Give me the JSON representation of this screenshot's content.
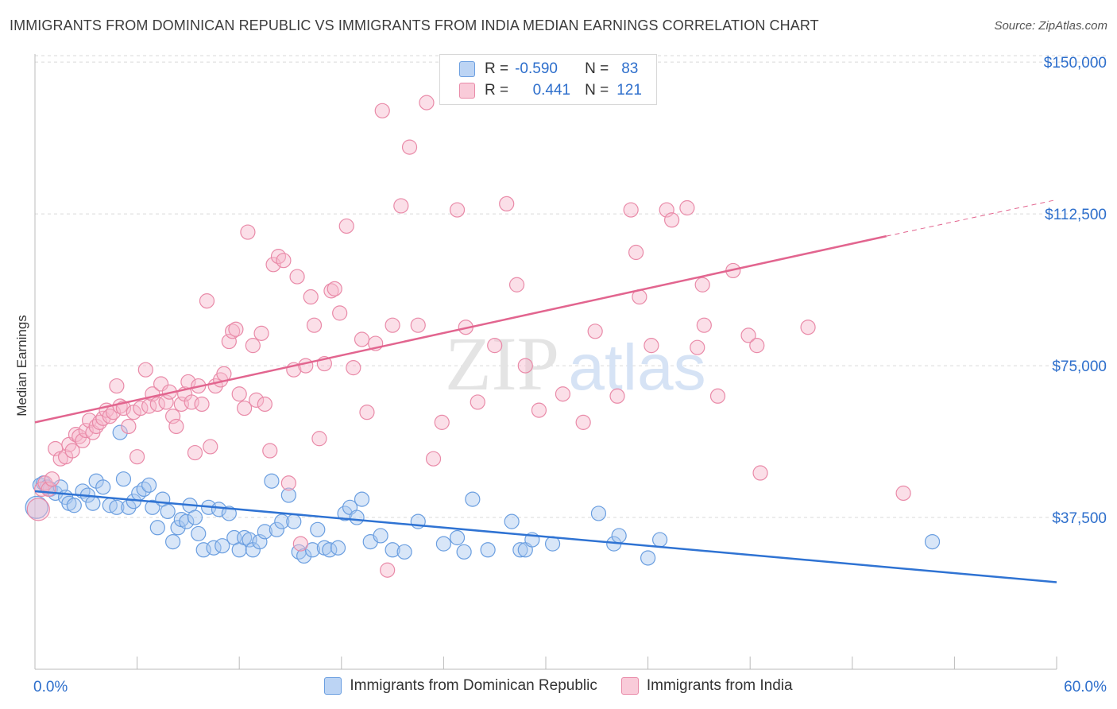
{
  "title": "IMMIGRANTS FROM DOMINICAN REPUBLIC VS IMMIGRANTS FROM INDIA MEDIAN EARNINGS CORRELATION CHART",
  "source": "Source: ZipAtlas.com",
  "watermark": {
    "zip": "ZIP",
    "atlas": "atlas"
  },
  "legend_inset": {
    "rows": [
      {
        "r_label": "R =",
        "r_value": "-0.590",
        "n_label": "N =",
        "n_value": "83"
      },
      {
        "r_label": "R =",
        "r_value": "0.441",
        "n_label": "N =",
        "n_value": "121"
      }
    ]
  },
  "colors": {
    "blue_fill": "#a9c8f0",
    "blue_stroke": "#6a9ee0",
    "blue_line": "#2f73d3",
    "pink_fill": "#f6b8cb",
    "pink_stroke": "#e98aa8",
    "pink_line": "#e2658f",
    "grid": "#d9d9d9",
    "axis_text": "#2e6fcc"
  },
  "chart_data": {
    "type": "scatter",
    "title": "IMMIGRANTS FROM DOMINICAN REPUBLIC VS IMMIGRANTS FROM INDIA MEDIAN EARNINGS CORRELATION CHART",
    "xlabel": "",
    "ylabel": "Median Earnings",
    "xlim": [
      0,
      60
    ],
    "ylim": [
      0,
      152000
    ],
    "x_tick_labels": [
      "0.0%",
      "60.0%"
    ],
    "y_ticks": [
      37500,
      75000,
      112500,
      150000
    ],
    "y_tick_labels": [
      "$37,500",
      "$75,000",
      "$112,500",
      "$150,000"
    ],
    "grid": true,
    "legend_position": "bottom",
    "series": [
      {
        "name": "Immigrants from Dominican Republic",
        "color": "#6a9ee0",
        "trend": {
          "x": [
            0,
            60
          ],
          "y": [
            44000,
            21500
          ]
        },
        "points": [
          [
            0.1,
            40000
          ],
          [
            0.3,
            45500
          ],
          [
            0.5,
            46000
          ],
          [
            0.7,
            45000
          ],
          [
            0.9,
            44500
          ],
          [
            1.2,
            43500
          ],
          [
            1.5,
            45000
          ],
          [
            1.8,
            42500
          ],
          [
            2.0,
            41000
          ],
          [
            2.3,
            40500
          ],
          [
            2.8,
            44000
          ],
          [
            3.1,
            43000
          ],
          [
            3.4,
            41000
          ],
          [
            3.6,
            46500
          ],
          [
            4.0,
            45000
          ],
          [
            4.4,
            40500
          ],
          [
            4.8,
            40000
          ],
          [
            5.0,
            58500
          ],
          [
            5.2,
            47000
          ],
          [
            5.5,
            40000
          ],
          [
            5.8,
            41500
          ],
          [
            6.1,
            43500
          ],
          [
            6.4,
            44500
          ],
          [
            6.7,
            45500
          ],
          [
            6.9,
            40000
          ],
          [
            7.2,
            35000
          ],
          [
            7.5,
            42000
          ],
          [
            7.8,
            39000
          ],
          [
            8.1,
            31500
          ],
          [
            8.4,
            35000
          ],
          [
            8.6,
            37000
          ],
          [
            8.9,
            36500
          ],
          [
            9.1,
            40500
          ],
          [
            9.4,
            37500
          ],
          [
            9.6,
            33500
          ],
          [
            9.9,
            29500
          ],
          [
            10.2,
            40000
          ],
          [
            10.5,
            30000
          ],
          [
            10.8,
            39500
          ],
          [
            11.0,
            30500
          ],
          [
            11.4,
            38500
          ],
          [
            11.7,
            32500
          ],
          [
            12.0,
            29500
          ],
          [
            12.3,
            32500
          ],
          [
            12.6,
            32000
          ],
          [
            12.8,
            29500
          ],
          [
            13.2,
            31500
          ],
          [
            13.5,
            34000
          ],
          [
            13.9,
            46500
          ],
          [
            14.2,
            34500
          ],
          [
            14.5,
            36500
          ],
          [
            14.9,
            43000
          ],
          [
            15.2,
            36500
          ],
          [
            15.5,
            29000
          ],
          [
            15.8,
            28000
          ],
          [
            16.3,
            29500
          ],
          [
            16.6,
            34500
          ],
          [
            17.0,
            30000
          ],
          [
            17.3,
            29500
          ],
          [
            17.8,
            30000
          ],
          [
            18.2,
            38500
          ],
          [
            18.5,
            40000
          ],
          [
            18.9,
            37500
          ],
          [
            19.2,
            42000
          ],
          [
            19.7,
            31500
          ],
          [
            20.3,
            33000
          ],
          [
            21.0,
            29500
          ],
          [
            21.7,
            29000
          ],
          [
            22.5,
            36500
          ],
          [
            24.0,
            31000
          ],
          [
            24.8,
            32500
          ],
          [
            25.2,
            29000
          ],
          [
            25.7,
            42000
          ],
          [
            26.6,
            29500
          ],
          [
            28.0,
            36500
          ],
          [
            28.5,
            29500
          ],
          [
            28.8,
            29500
          ],
          [
            29.2,
            32000
          ],
          [
            30.4,
            31000
          ],
          [
            33.1,
            38500
          ],
          [
            34.0,
            31000
          ],
          [
            34.3,
            33000
          ],
          [
            36.0,
            27500
          ],
          [
            36.7,
            32000
          ],
          [
            52.7,
            31500
          ]
        ]
      },
      {
        "name": "Immigrants from India",
        "color": "#e98aa8",
        "trend": {
          "x": [
            0,
            50
          ],
          "y": [
            61000,
            107000
          ],
          "dashed_to": {
            "x": 60,
            "y": 116000
          }
        },
        "points": [
          [
            0.2,
            39500
          ],
          [
            0.4,
            44500
          ],
          [
            0.6,
            46000
          ],
          [
            0.8,
            44500
          ],
          [
            1.0,
            47000
          ],
          [
            1.2,
            54500
          ],
          [
            1.5,
            52000
          ],
          [
            1.8,
            52500
          ],
          [
            2.0,
            55500
          ],
          [
            2.2,
            54000
          ],
          [
            2.4,
            58000
          ],
          [
            2.6,
            57500
          ],
          [
            2.8,
            56500
          ],
          [
            3.0,
            59000
          ],
          [
            3.2,
            61500
          ],
          [
            3.4,
            58500
          ],
          [
            3.6,
            60000
          ],
          [
            3.8,
            61000
          ],
          [
            4.0,
            62000
          ],
          [
            4.2,
            64000
          ],
          [
            4.4,
            62500
          ],
          [
            4.6,
            63500
          ],
          [
            4.8,
            70000
          ],
          [
            5.0,
            65000
          ],
          [
            5.2,
            64500
          ],
          [
            5.5,
            60000
          ],
          [
            5.8,
            63500
          ],
          [
            6.0,
            52500
          ],
          [
            6.2,
            64500
          ],
          [
            6.5,
            74000
          ],
          [
            6.7,
            65000
          ],
          [
            6.9,
            68000
          ],
          [
            7.2,
            65500
          ],
          [
            7.4,
            70500
          ],
          [
            7.7,
            66000
          ],
          [
            7.9,
            68500
          ],
          [
            8.1,
            62500
          ],
          [
            8.3,
            60000
          ],
          [
            8.6,
            65500
          ],
          [
            8.8,
            68000
          ],
          [
            9.0,
            71000
          ],
          [
            9.2,
            66000
          ],
          [
            9.4,
            53500
          ],
          [
            9.6,
            70000
          ],
          [
            9.8,
            65500
          ],
          [
            10.1,
            91000
          ],
          [
            10.3,
            55000
          ],
          [
            10.6,
            70000
          ],
          [
            10.9,
            71500
          ],
          [
            11.1,
            73000
          ],
          [
            11.4,
            81000
          ],
          [
            11.6,
            83500
          ],
          [
            11.8,
            84000
          ],
          [
            12.0,
            68000
          ],
          [
            12.3,
            64500
          ],
          [
            12.5,
            108000
          ],
          [
            12.8,
            80000
          ],
          [
            13.0,
            66500
          ],
          [
            13.3,
            83000
          ],
          [
            13.5,
            65500
          ],
          [
            13.8,
            54000
          ],
          [
            14.0,
            100000
          ],
          [
            14.3,
            102000
          ],
          [
            14.6,
            101000
          ],
          [
            14.9,
            46000
          ],
          [
            15.2,
            74000
          ],
          [
            15.4,
            97000
          ],
          [
            15.6,
            31000
          ],
          [
            15.9,
            75000
          ],
          [
            16.2,
            92000
          ],
          [
            16.4,
            85000
          ],
          [
            16.7,
            57000
          ],
          [
            17.0,
            75500
          ],
          [
            17.4,
            93500
          ],
          [
            17.6,
            94000
          ],
          [
            17.9,
            88000
          ],
          [
            18.3,
            109500
          ],
          [
            18.7,
            74500
          ],
          [
            19.2,
            81500
          ],
          [
            19.5,
            63500
          ],
          [
            20.0,
            80500
          ],
          [
            20.4,
            138000
          ],
          [
            20.7,
            24500
          ],
          [
            21.0,
            85000
          ],
          [
            21.5,
            114500
          ],
          [
            22.0,
            129000
          ],
          [
            22.5,
            85000
          ],
          [
            23.0,
            140000
          ],
          [
            23.4,
            52000
          ],
          [
            23.9,
            61000
          ],
          [
            24.8,
            113500
          ],
          [
            25.3,
            84500
          ],
          [
            26.0,
            66000
          ],
          [
            27.0,
            80000
          ],
          [
            27.7,
            115000
          ],
          [
            28.3,
            95000
          ],
          [
            28.8,
            75000
          ],
          [
            29.6,
            64000
          ],
          [
            31.0,
            68000
          ],
          [
            32.2,
            61000
          ],
          [
            32.9,
            83500
          ],
          [
            34.2,
            67500
          ],
          [
            35.0,
            113500
          ],
          [
            35.3,
            103000
          ],
          [
            35.5,
            92000
          ],
          [
            36.2,
            80000
          ],
          [
            37.1,
            113500
          ],
          [
            37.4,
            111000
          ],
          [
            38.3,
            114000
          ],
          [
            38.9,
            79500
          ],
          [
            39.2,
            95000
          ],
          [
            39.3,
            85000
          ],
          [
            40.1,
            67500
          ],
          [
            41.0,
            98500
          ],
          [
            41.9,
            82500
          ],
          [
            42.4,
            80000
          ],
          [
            42.6,
            48500
          ],
          [
            45.4,
            84500
          ],
          [
            51.0,
            43500
          ]
        ]
      }
    ]
  }
}
